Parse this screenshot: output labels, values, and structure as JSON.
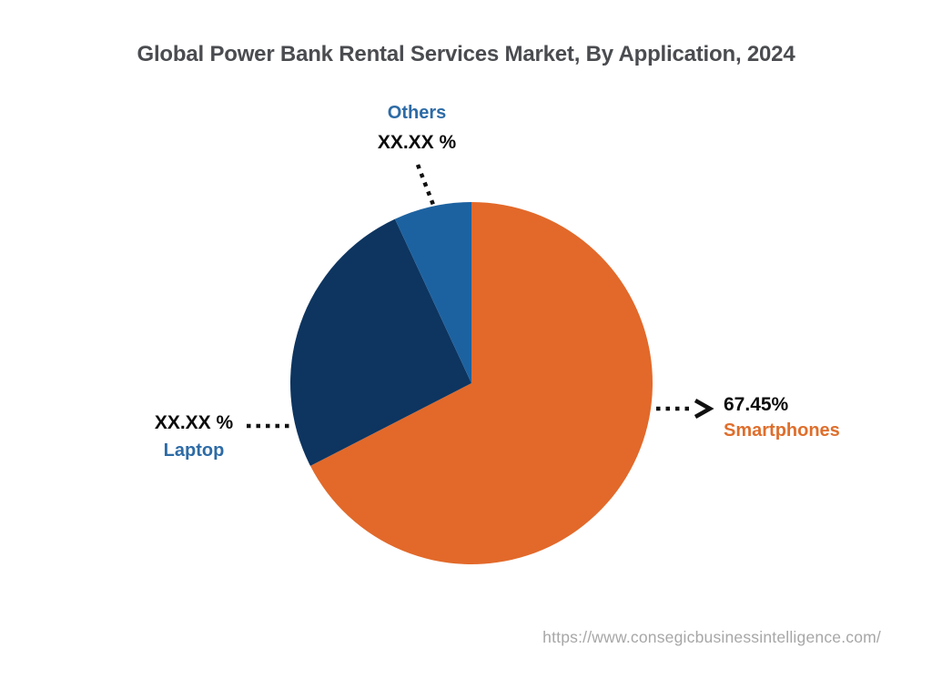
{
  "header": {
    "title": "Global Power Bank Rental Services Market, By Application, 2024"
  },
  "chart_data": {
    "type": "pie",
    "title": "Global Power Bank Rental Services Market, By Application, 2024",
    "start_angle_deg": 0,
    "direction": "clockwise",
    "legend_position": "none",
    "leader_line_color": "#111111",
    "slices": [
      {
        "label": "Smartphones",
        "value": 67.45,
        "value_label": "67.45%",
        "color": "#e2692a",
        "label_color": "#df6e2c"
      },
      {
        "label": "Laptop",
        "value": 25.61,
        "value_label": "XX.XX %",
        "color": "#0d3560",
        "label_color": "#2d6ba6"
      },
      {
        "label": "Others",
        "value": 6.94,
        "value_label": "XX.XX %",
        "color": "#1d62a0",
        "label_color": "#2d6ba6"
      }
    ]
  },
  "footer": {
    "url": "https://www.consegicbusinessintelligence.com/"
  }
}
